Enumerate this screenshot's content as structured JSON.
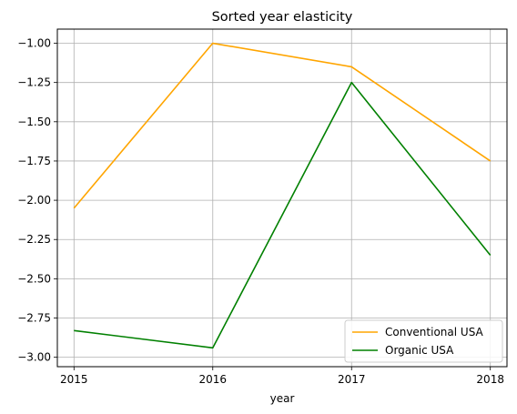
{
  "chart_data": {
    "type": "line",
    "title": "Sorted year elasticity",
    "xlabel": "year",
    "ylabel": "",
    "x": [
      2015,
      2016,
      2017,
      2018
    ],
    "x_tick_labels": [
      "2015",
      "2016",
      "2017",
      "2018"
    ],
    "xlim": [
      2014.88,
      2018.12
    ],
    "ylim": [
      -3.06,
      -0.91
    ],
    "y_ticks": [
      -1.0,
      -1.25,
      -1.5,
      -1.75,
      -2.0,
      -2.25,
      -2.5,
      -2.75,
      -3.0
    ],
    "y_tick_labels": [
      "−1.00",
      "−1.25",
      "−1.50",
      "−1.75",
      "−2.00",
      "−2.25",
      "−2.50",
      "−2.75",
      "−3.00"
    ],
    "grid": true,
    "legend_position": "lower-right",
    "series": [
      {
        "name": "Conventional USA",
        "color": "#ffa500",
        "values": [
          -2.05,
          -1.0,
          -1.15,
          -1.75
        ]
      },
      {
        "name": "Organic USA",
        "color": "#008000",
        "values": [
          -2.83,
          -2.94,
          -1.25,
          -2.35
        ]
      }
    ]
  }
}
